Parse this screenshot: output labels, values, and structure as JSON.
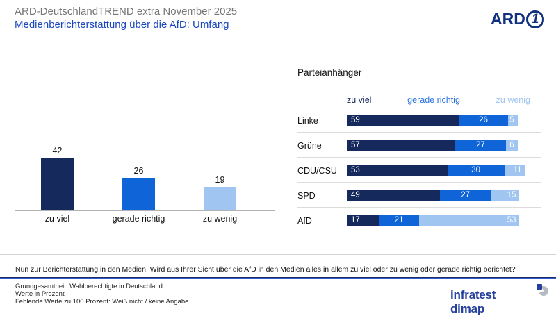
{
  "header": {
    "pretitle": "ARD-DeutschlandTREND extra November 2025",
    "title": "Medienberichterstattung über die AfD: Umfang",
    "brand": "ARD",
    "brand_one": "1"
  },
  "colors": {
    "dark_blue": "#16295c",
    "mid_blue": "#0f64d8",
    "light_blue": "#9fc5f0",
    "title_blue": "#1a46c0",
    "title_gray": "#767676",
    "brand_navy": "#10317f",
    "infratest_blue": "#24409c"
  },
  "chart_data": [
    {
      "type": "bar",
      "title": "",
      "categories": [
        "zu viel",
        "gerade richtig",
        "zu wenig"
      ],
      "values": [
        42,
        26,
        19
      ],
      "bar_colors": [
        "#16295c",
        "#0f64d8",
        "#9fc5f0"
      ],
      "xlabel": "",
      "ylabel": "",
      "unit": "Prozent",
      "grid": false,
      "value_labels": true
    },
    {
      "type": "bar",
      "orientation": "horizontal-stacked",
      "title": "Parteianhänger",
      "categories": [
        "Linke",
        "Grüne",
        "CDU/CSU",
        "SPD",
        "AfD"
      ],
      "series": [
        {
          "name": "zu viel",
          "color": "#16295c",
          "values": [
            59,
            57,
            53,
            49,
            17
          ]
        },
        {
          "name": "gerade richtig",
          "color": "#0f64d8",
          "values": [
            26,
            27,
            30,
            27,
            21
          ]
        },
        {
          "name": "zu wenig",
          "color": "#9fc5f0",
          "values": [
            5,
            6,
            11,
            15,
            53
          ]
        }
      ],
      "xlim": [
        0,
        100
      ],
      "legend_position": "top",
      "unit": "Prozent",
      "value_labels": true
    }
  ],
  "right_panel": {
    "title": "Parteianhänger",
    "legend": [
      "zu viel",
      "gerade richtig",
      "zu wenig"
    ]
  },
  "footer": {
    "question": "Nun zur Berichterstattung in den Medien. Wird aus Ihrer Sicht über die AfD in den Medien alles in allem zu viel oder zu wenig oder gerade richtig berichtet?",
    "notes": [
      "Grundgesamtheit: Wahlberechtigte in Deutschland",
      "Werte in Prozent",
      "Fehlende Werte zu 100 Prozent: Weiß nicht / keine Angabe"
    ],
    "brand": "infratest dimap"
  }
}
